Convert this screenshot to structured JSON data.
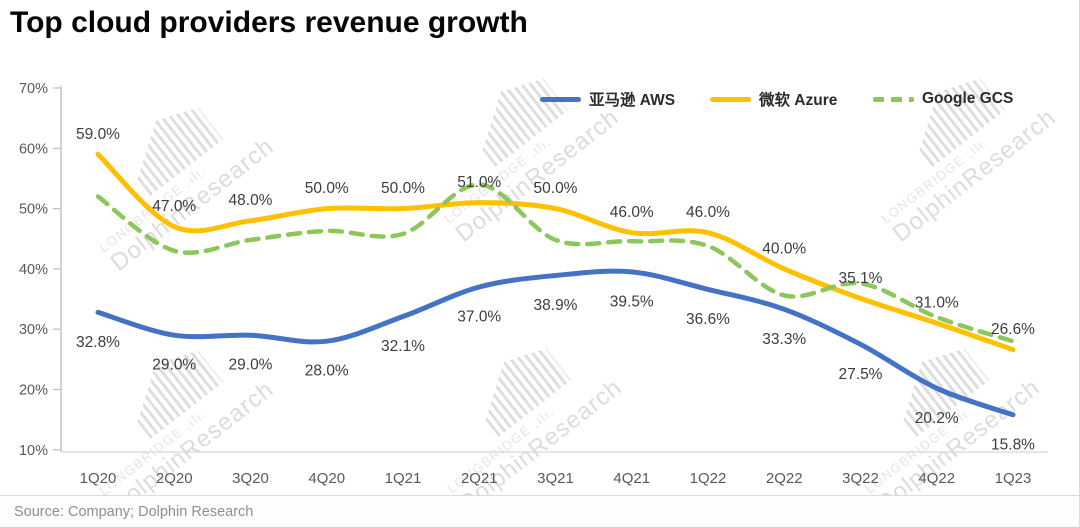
{
  "chart_data": {
    "type": "line",
    "title": "Top cloud providers revenue growth",
    "source": "Source: Company; Dolphin Research",
    "categories": [
      "1Q20",
      "2Q20",
      "3Q20",
      "4Q20",
      "1Q21",
      "2Q21",
      "3Q21",
      "4Q21",
      "1Q22",
      "2Q22",
      "3Q22",
      "4Q22",
      "1Q23"
    ],
    "y_axis": {
      "min": 10,
      "max": 70,
      "step": 10,
      "suffix": "%"
    },
    "grid": false,
    "legend_position": "top-right",
    "series": [
      {
        "name": "亚马逊 AWS",
        "color": "#4472C4",
        "line_style": "solid",
        "label_position": "below",
        "values": [
          32.8,
          29.0,
          29.0,
          28.0,
          32.1,
          37.0,
          38.9,
          39.5,
          36.6,
          33.3,
          27.5,
          20.2,
          15.8
        ],
        "labels": [
          "32.8%",
          "29.0%",
          "29.0%",
          "28.0%",
          "32.1%",
          "37.0%",
          "38.9%",
          "39.5%",
          "36.6%",
          "33.3%",
          "27.5%",
          "20.2%",
          "15.8%"
        ]
      },
      {
        "name": "微软 Azure",
        "color": "#FFC000",
        "line_style": "solid",
        "label_position": "above",
        "values": [
          59.0,
          47.0,
          48.0,
          50.0,
          50.0,
          51.0,
          50.0,
          46.0,
          46.0,
          40.0,
          35.1,
          31.0,
          26.6
        ],
        "labels": [
          "59.0%",
          "47.0%",
          "48.0%",
          "50.0%",
          "50.0%",
          "51.0%",
          "50.0%",
          "46.0%",
          "46.0%",
          "40.0%",
          "35.1%",
          "31.0%",
          "26.6%"
        ]
      },
      {
        "name": "Google GCS",
        "color": "#8DC75B",
        "line_style": "dashed",
        "label_position": "none",
        "values": [
          52.0,
          43.0,
          44.8,
          46.3,
          45.8,
          54.0,
          44.8,
          44.6,
          43.8,
          35.6,
          37.6,
          32.0,
          28.0
        ],
        "labels": []
      }
    ]
  },
  "watermark": {
    "brand": "LONGBRIDGE ,ılı.",
    "name": "DolphinResearch"
  }
}
